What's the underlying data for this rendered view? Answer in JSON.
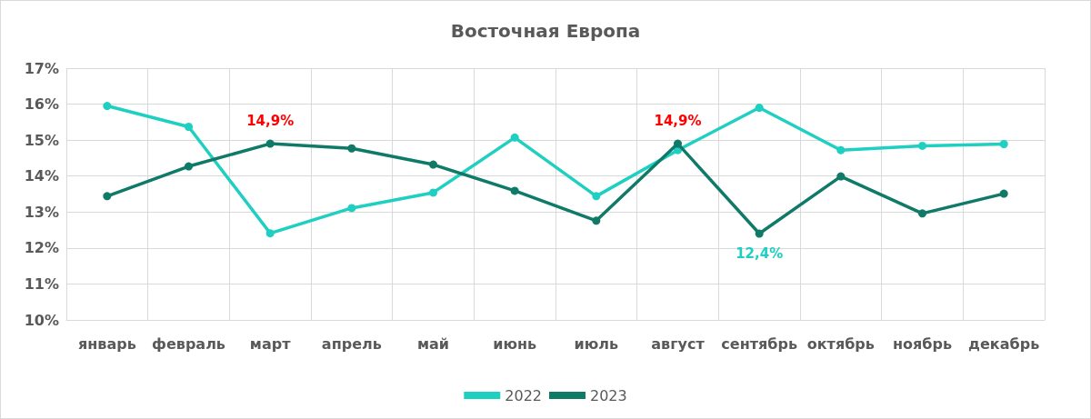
{
  "chart_data": {
    "type": "line",
    "title": "Восточная Европа",
    "categories": [
      "январь",
      "февраль",
      "март",
      "апрель",
      "май",
      "июнь",
      "июль",
      "август",
      "сентябрь",
      "октябрь",
      "ноябрь",
      "декабрь"
    ],
    "series": [
      {
        "name": "2022",
        "color": "#1fcfc1",
        "values": [
          15.95,
          15.37,
          12.41,
          13.11,
          13.54,
          15.07,
          13.44,
          14.72,
          15.9,
          14.72,
          14.84,
          14.89
        ]
      },
      {
        "name": "2023",
        "color": "#107a68",
        "values": [
          13.44,
          14.27,
          14.9,
          14.77,
          14.32,
          13.59,
          12.76,
          14.9,
          12.4,
          13.99,
          12.96,
          13.51
        ]
      }
    ],
    "ylim": [
      10,
      17
    ],
    "yticks": [
      {
        "value": 10,
        "label": "10%"
      },
      {
        "value": 11,
        "label": "11%"
      },
      {
        "value": 12,
        "label": "12%"
      },
      {
        "value": 13,
        "label": "13%"
      },
      {
        "value": 14,
        "label": "14%"
      },
      {
        "value": 15,
        "label": "15%"
      },
      {
        "value": 16,
        "label": "16%"
      },
      {
        "value": 17,
        "label": "17%"
      }
    ],
    "annotations": [
      {
        "text": "14,9%",
        "x": "март",
        "y": 14.9
      },
      {
        "text": "14,9%",
        "x": "август",
        "y": 14.9
      },
      {
        "text": "12,4%",
        "x": "сентябрь",
        "y": 12.4
      }
    ],
    "grid": true,
    "legend": "bottom",
    "marker": "circle",
    "line_style": "solid"
  }
}
